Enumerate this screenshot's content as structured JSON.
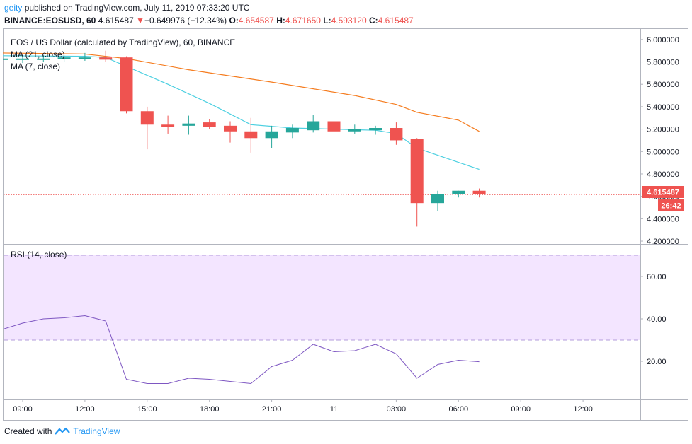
{
  "header": {
    "author": "geity",
    "publish_text": "published on TradingView.com, July 11, 2019 07:33:20 UTC",
    "symbol": "BINANCE:EOSUSD, 60",
    "last_price": "4.615487",
    "change_arrow": "▼",
    "change": "−0.649976 (−12.34%)",
    "o_label": "O:",
    "o_value": "4.654587",
    "h_label": "H:",
    "h_value": "4.671650",
    "l_label": "L:",
    "l_value": "4.593120",
    "c_label": "C:",
    "c_value": "4.615487"
  },
  "legend": {
    "title": "EOS / US Dollar (calculated by TradingView), 60, BINANCE",
    "ma21": "MA (21, close)",
    "ma7": "MA (7, close)",
    "rsi": "RSI (14, close)"
  },
  "price_badge": {
    "value": "4.615487",
    "countdown": "26:42"
  },
  "footer": {
    "created_with": "Created with",
    "brand": "TradingView"
  },
  "colors": {
    "up": "#26a69a",
    "down": "#ef5350",
    "ma21": "#f57c1f",
    "ma7": "#4dd0e1",
    "rsi_line": "#7e57c2",
    "rsi_band": "#f3e5ff"
  },
  "chart_data": {
    "type": "candlestick",
    "x_tick_labels": [
      "09:00",
      "12:00",
      "15:00",
      "18:00",
      "21:00",
      "11",
      "03:00",
      "06:00",
      "09:00",
      "12:00"
    ],
    "x_tick_hours": [
      0,
      3,
      6,
      9,
      12,
      15,
      18,
      21,
      24,
      27
    ],
    "y_ticks": [
      "6.000000",
      "5.800000",
      "5.600000",
      "5.400000",
      "5.200000",
      "5.000000",
      "4.800000",
      "4.600000",
      "4.400000",
      "4.200000"
    ],
    "ylim": [
      4.175,
      6.1
    ],
    "last_price_line": 4.615487,
    "candles": [
      {
        "t": -1,
        "o": 5.83,
        "h": 5.87,
        "l": 5.8,
        "c": 5.83
      },
      {
        "t": 0,
        "o": 5.82,
        "h": 5.85,
        "l": 5.79,
        "c": 5.83
      },
      {
        "t": 1,
        "o": 5.83,
        "h": 5.86,
        "l": 5.8,
        "c": 5.83
      },
      {
        "t": 2,
        "o": 5.83,
        "h": 5.86,
        "l": 5.8,
        "c": 5.84
      },
      {
        "t": 3,
        "o": 5.84,
        "h": 5.88,
        "l": 5.81,
        "c": 5.84
      },
      {
        "t": 4,
        "o": 5.84,
        "h": 5.9,
        "l": 5.8,
        "c": 5.82
      },
      {
        "t": 5,
        "o": 5.84,
        "h": 5.85,
        "l": 5.34,
        "c": 5.36
      },
      {
        "t": 6,
        "o": 5.36,
        "h": 5.4,
        "l": 5.02,
        "c": 5.24
      },
      {
        "t": 7,
        "o": 5.24,
        "h": 5.32,
        "l": 5.16,
        "c": 5.22
      },
      {
        "t": 8,
        "o": 5.23,
        "h": 5.32,
        "l": 5.15,
        "c": 5.25
      },
      {
        "t": 9,
        "o": 5.26,
        "h": 5.29,
        "l": 5.2,
        "c": 5.22
      },
      {
        "t": 10,
        "o": 5.23,
        "h": 5.27,
        "l": 5.08,
        "c": 5.18
      },
      {
        "t": 11,
        "o": 5.18,
        "h": 5.3,
        "l": 4.99,
        "c": 5.12
      },
      {
        "t": 12,
        "o": 5.12,
        "h": 5.23,
        "l": 5.03,
        "c": 5.18
      },
      {
        "t": 13,
        "o": 5.17,
        "h": 5.24,
        "l": 5.12,
        "c": 5.21
      },
      {
        "t": 14,
        "o": 5.19,
        "h": 5.33,
        "l": 5.17,
        "c": 5.27
      },
      {
        "t": 15,
        "o": 5.27,
        "h": 5.3,
        "l": 5.11,
        "c": 5.18
      },
      {
        "t": 16,
        "o": 5.18,
        "h": 5.24,
        "l": 5.16,
        "c": 5.2
      },
      {
        "t": 17,
        "o": 5.19,
        "h": 5.23,
        "l": 5.15,
        "c": 5.21
      },
      {
        "t": 18,
        "o": 5.21,
        "h": 5.26,
        "l": 5.06,
        "c": 5.1
      },
      {
        "t": 19,
        "o": 5.11,
        "h": 5.12,
        "l": 4.33,
        "c": 4.54
      },
      {
        "t": 20,
        "o": 4.54,
        "h": 4.65,
        "l": 4.47,
        "c": 4.62
      },
      {
        "t": 21,
        "o": 4.62,
        "h": 4.65,
        "l": 4.59,
        "c": 4.65
      },
      {
        "t": 22,
        "o": 4.65,
        "h": 4.67,
        "l": 4.59,
        "c": 4.62
      }
    ],
    "ma21": [
      [
        -5,
        5.88
      ],
      [
        -1,
        5.88
      ],
      [
        3,
        5.87
      ],
      [
        5,
        5.83
      ],
      [
        8,
        5.73
      ],
      [
        12,
        5.62
      ],
      [
        16,
        5.5
      ],
      [
        18,
        5.42
      ],
      [
        19,
        5.35
      ],
      [
        21,
        5.28
      ],
      [
        22,
        5.18
      ]
    ],
    "ma7": [
      [
        -5,
        5.86
      ],
      [
        3,
        5.85
      ],
      [
        4,
        5.84
      ],
      [
        7,
        5.6
      ],
      [
        9,
        5.43
      ],
      [
        11,
        5.24
      ],
      [
        13,
        5.21
      ],
      [
        15,
        5.2
      ],
      [
        17,
        5.19
      ],
      [
        18,
        5.16
      ],
      [
        19,
        5.03
      ],
      [
        22,
        4.84
      ]
    ],
    "rsi": {
      "ticks": [
        "60.00",
        "40.00",
        "20.00"
      ],
      "ylim": [
        2,
        75
      ],
      "overbought": 70,
      "oversold": 30,
      "points": [
        [
          -1,
          35
        ],
        [
          0,
          38
        ],
        [
          1,
          40
        ],
        [
          2,
          40.5
        ],
        [
          3,
          41.5
        ],
        [
          4,
          39
        ],
        [
          5,
          11.5
        ],
        [
          6,
          9.5
        ],
        [
          7,
          9.5
        ],
        [
          8,
          12
        ],
        [
          9,
          11.5
        ],
        [
          10,
          10.5
        ],
        [
          11,
          9.5
        ],
        [
          12,
          17.5
        ],
        [
          13,
          20.5
        ],
        [
          14,
          28
        ],
        [
          15,
          24.5
        ],
        [
          16,
          25
        ],
        [
          17,
          28
        ],
        [
          18,
          23.5
        ],
        [
          19,
          12
        ],
        [
          20,
          18.5
        ],
        [
          21,
          20.5
        ],
        [
          22,
          19.8
        ]
      ]
    }
  }
}
